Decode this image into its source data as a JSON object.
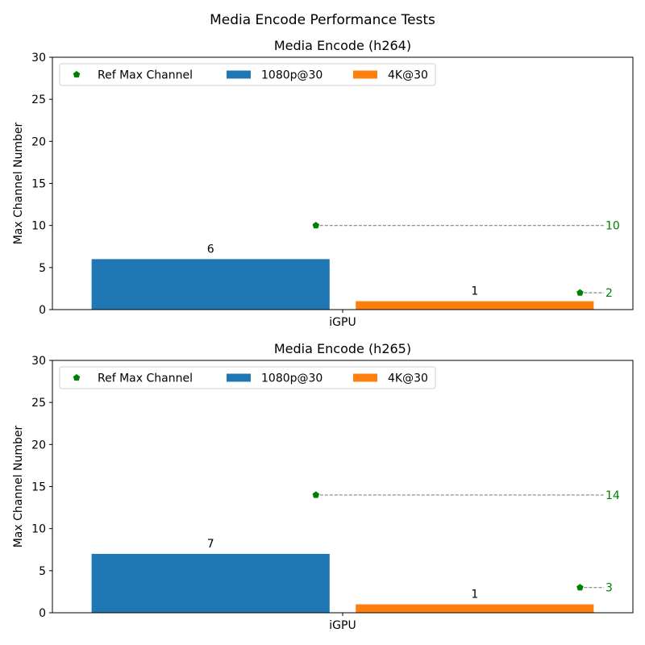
{
  "figure": {
    "title": "Media Encode Performance Tests"
  },
  "colors": {
    "bar1080": "#1f77b4",
    "bar4k": "#ff7f0e",
    "ref": "#008000",
    "dash": "#808080"
  },
  "legend": {
    "ref_label": "Ref Max Channel",
    "s1": "1080p@30",
    "s2": "4K@30",
    "placement": "top-left"
  },
  "chart_data": [
    {
      "type": "bar",
      "title": "Media Encode (h264)",
      "xlabel": "",
      "ylabel": "Max Channel Number",
      "categories": [
        "iGPU"
      ],
      "ylim": [
        0,
        30
      ],
      "yticks": [
        0,
        5,
        10,
        15,
        20,
        25,
        30
      ],
      "series": [
        {
          "name": "1080p@30",
          "values": [
            6
          ],
          "ref_max": [
            10
          ]
        },
        {
          "name": "4K@30",
          "values": [
            1
          ],
          "ref_max": [
            2
          ]
        }
      ],
      "ref_series_name": "Ref Max Channel",
      "grid": false
    },
    {
      "type": "bar",
      "title": "Media Encode (h265)",
      "xlabel": "",
      "ylabel": "Max Channel Number",
      "categories": [
        "iGPU"
      ],
      "ylim": [
        0,
        30
      ],
      "yticks": [
        0,
        5,
        10,
        15,
        20,
        25,
        30
      ],
      "series": [
        {
          "name": "1080p@30",
          "values": [
            7
          ],
          "ref_max": [
            14
          ]
        },
        {
          "name": "4K@30",
          "values": [
            1
          ],
          "ref_max": [
            3
          ]
        }
      ],
      "ref_series_name": "Ref Max Channel",
      "grid": false
    }
  ]
}
